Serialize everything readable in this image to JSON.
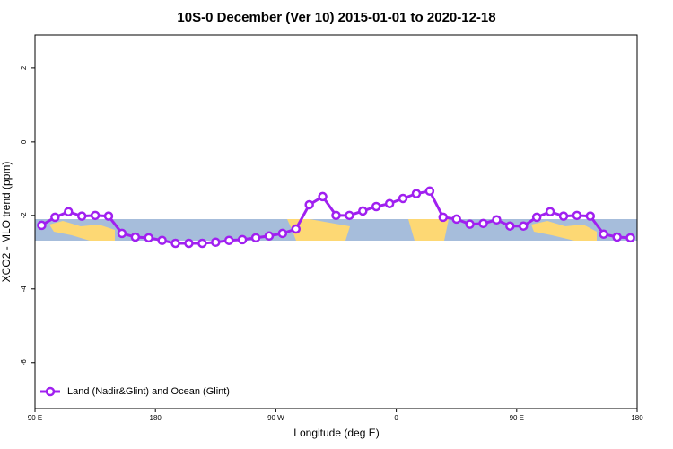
{
  "chart_data": {
    "type": "line",
    "title": "10S-0 December (Ver 10)   2015-01-01 to 2020-12-18",
    "x_label": "Longitude (deg E)",
    "y_label": "XCO2 - MLO trend (ppm)",
    "x": [
      95,
      105,
      115,
      125,
      135,
      145,
      155,
      165,
      175,
      185,
      195,
      205,
      215,
      225,
      235,
      245,
      255,
      265,
      275,
      285,
      295,
      305,
      315,
      325,
      335,
      345,
      355,
      365,
      375,
      385,
      395,
      405,
      415,
      425,
      435,
      445,
      455,
      465,
      475,
      485,
      495,
      505,
      515,
      525,
      535
    ],
    "series": [
      {
        "name": "Land (Nadir&Glint) and Ocean (Glint)",
        "color": "#a020f0",
        "values": [
          -2.27,
          -2.05,
          -1.9,
          -2.02,
          -2.0,
          -2.02,
          -2.49,
          -2.59,
          -2.61,
          -2.68,
          -2.76,
          -2.76,
          -2.76,
          -2.73,
          -2.68,
          -2.66,
          -2.61,
          -2.56,
          -2.49,
          -2.37,
          -1.71,
          -1.49,
          -2.0,
          -2.0,
          -1.88,
          -1.76,
          -1.68,
          -1.54,
          -1.41,
          -1.34,
          -2.05,
          -2.1,
          -2.24,
          -2.22,
          -2.12,
          -2.29,
          -2.29,
          -2.05,
          -1.9,
          -2.02,
          -2.0,
          -2.02,
          -2.51,
          -2.59,
          -2.61
        ]
      }
    ],
    "xlim": [
      90,
      540
    ],
    "xticks": [
      {
        "value": 90,
        "label": "90 E"
      },
      180,
      {
        "value": 270,
        "label": "90 W"
      },
      {
        "value": 360,
        "label": "0"
      },
      {
        "value": 450,
        "label": "90 E"
      },
      {
        "value": 540,
        "label": "180"
      }
    ],
    "ylim": [
      -7.25,
      2.9
    ],
    "yticks": [
      2,
      0,
      -2,
      -4,
      -6
    ],
    "legend": "bottom-left"
  }
}
